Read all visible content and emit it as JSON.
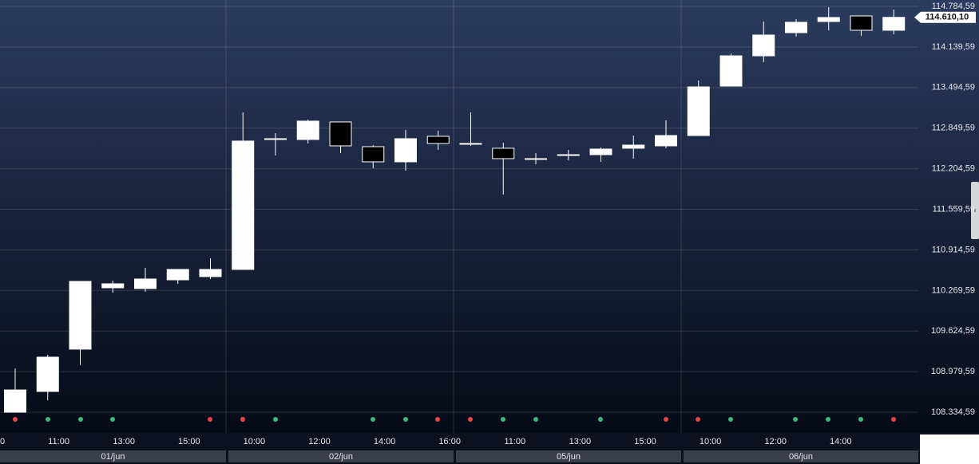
{
  "chart_data": {
    "type": "candlestick",
    "open": [
      108335,
      108665,
      109337,
      110312,
      110300,
      110439,
      110490,
      110604,
      112682,
      112669,
      112948,
      112555,
      112314,
      112720,
      112606,
      112530,
      112365,
      112428,
      112428,
      112530,
      112568,
      112732,
      113518,
      113999,
      114367,
      114544,
      114633,
      114405
    ],
    "high": [
      109031,
      109248,
      110414,
      110427,
      110629,
      110604,
      110781,
      113100,
      112770,
      112986,
      112948,
      112580,
      112821,
      112808,
      113100,
      112618,
      112454,
      112504,
      112542,
      112732,
      112973,
      113607,
      114037,
      114544,
      114582,
      114772,
      114633,
      114734
    ],
    "low": [
      108335,
      108526,
      109084,
      110236,
      110249,
      110376,
      110452,
      110604,
      112416,
      112606,
      112454,
      112213,
      112175,
      112504,
      112568,
      111795,
      112276,
      112340,
      112314,
      112365,
      112530,
      112732,
      113518,
      113898,
      114304,
      114405,
      114316,
      114342
    ],
    "close": [
      108689,
      109210,
      110414,
      110376,
      110452,
      110604,
      110604,
      112644,
      112682,
      112961,
      112568,
      112314,
      112682,
      112606,
      112606,
      112365,
      112365,
      112428,
      112517,
      112580,
      112732,
      113505,
      113999,
      114329,
      114532,
      114608,
      114405,
      114610
    ],
    "up_color": "#ffffff",
    "down_color": "#000000",
    "ylim": [
      108006,
      114886
    ],
    "yticks": [
      {
        "value": 108334.59,
        "label": "108.334,59"
      },
      {
        "value": 108979.59,
        "label": "108.979,59"
      },
      {
        "value": 109624.59,
        "label": "109.624,59"
      },
      {
        "value": 110269.59,
        "label": "110.269,59"
      },
      {
        "value": 110914.59,
        "label": "110.914,59"
      },
      {
        "value": 111559.59,
        "label": "111.559,59"
      },
      {
        "value": 112204.59,
        "label": "112.204,59"
      },
      {
        "value": 112849.59,
        "label": "112.849,59"
      },
      {
        "value": 113494.59,
        "label": "113.494,59"
      },
      {
        "value": 114139.59,
        "label": "114.139,59"
      },
      {
        "value": 114784.59,
        "label": "114.784,59"
      }
    ],
    "last_price": {
      "value": 114610.1,
      "label": "114.610,10"
    },
    "grid": true,
    "x_labels": [
      "0",
      "11:00",
      "13:00",
      "15:00",
      "10:00",
      "12:00",
      "14:00",
      "16:00",
      "11:00",
      "13:00",
      "15:00",
      "10:00",
      "12:00",
      "14:00"
    ],
    "days": [
      "01/jun",
      "02/jun",
      "05/jun",
      "06/jun"
    ]
  }
}
